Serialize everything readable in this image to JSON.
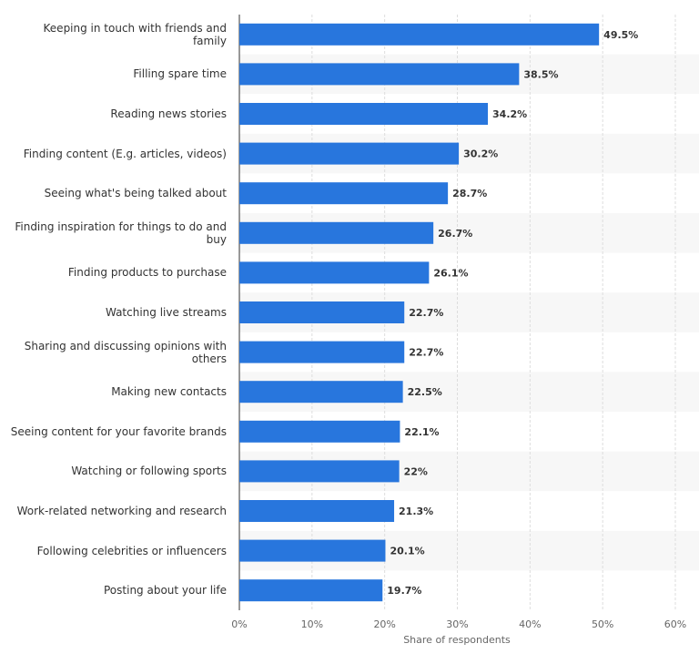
{
  "chart_data": {
    "type": "bar",
    "orientation": "horizontal",
    "x_label": "Share of respondents",
    "categories": [
      "Keeping in touch with friends and family",
      "Filling spare time",
      "Reading news stories",
      "Finding content (E.g. articles, videos)",
      "Seeing what's being talked about",
      "Finding inspiration for things to do and buy",
      "Finding products to purchase",
      "Watching live streams",
      "Sharing and discussing opinions with others",
      "Making new contacts",
      "Seeing content for your favorite brands",
      "Watching or following sports",
      "Work-related networking and research",
      "Following celebrities or influencers",
      "Posting about your life"
    ],
    "values": [
      49.5,
      38.5,
      34.2,
      30.2,
      28.7,
      26.7,
      26.1,
      22.7,
      22.7,
      22.5,
      22.1,
      22,
      21.3,
      20.1,
      19.7
    ],
    "value_labels": [
      "49.5%",
      "38.5%",
      "34.2%",
      "30.2%",
      "28.7%",
      "26.7%",
      "26.1%",
      "22.7%",
      "22.7%",
      "22.5%",
      "22.1%",
      "22%",
      "21.3%",
      "20.1%",
      "19.7%"
    ],
    "color": "#2876dd",
    "xlim": [
      0,
      60
    ],
    "xticks": [
      {
        "value": 0,
        "label": "0%"
      },
      {
        "value": 10,
        "label": "10%"
      },
      {
        "value": 20,
        "label": "20%"
      },
      {
        "value": 30,
        "label": "30%"
      },
      {
        "value": 40,
        "label": "40%"
      },
      {
        "value": 50,
        "label": "50%"
      },
      {
        "value": 60,
        "label": "60%"
      }
    ],
    "grid": true
  }
}
